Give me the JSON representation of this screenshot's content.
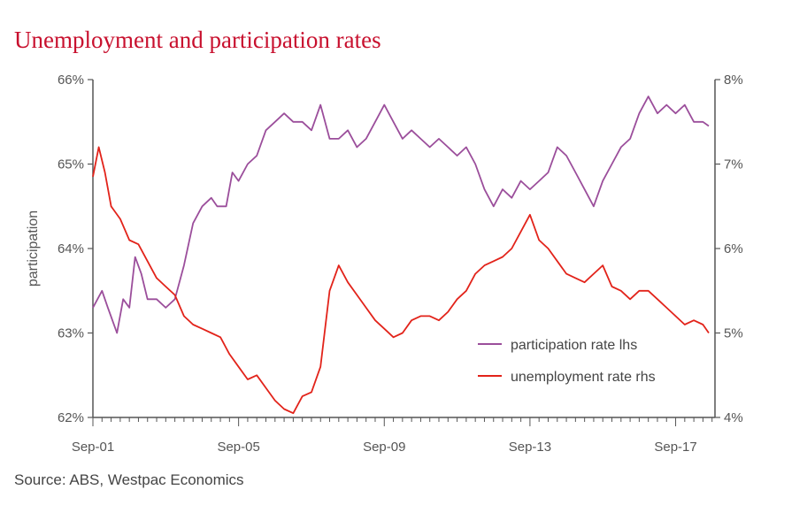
{
  "title": "Unemployment and participation rates",
  "source": "Source: ABS, Westpac Economics",
  "colors": {
    "participation": "#9b4e9b",
    "unemployment": "#e2231a",
    "axis": "#555555",
    "title": "#c8102e"
  },
  "chart_data": {
    "type": "line",
    "title": "Unemployment and participation rates",
    "ylabel_left": "participation",
    "ylim_left": [
      62,
      66
    ],
    "ylim_right": [
      4,
      8
    ],
    "yticks_left": [
      "62%",
      "63%",
      "64%",
      "65%",
      "66%"
    ],
    "yticks_right": [
      "4%",
      "5%",
      "6%",
      "7%",
      "8%"
    ],
    "xticks": [
      "Sep-01",
      "Sep-05",
      "Sep-09",
      "Sep-13",
      "Sep-17"
    ],
    "xlim": [
      2001.67,
      2018.75
    ],
    "grid": false,
    "legend_position": "bottom-right",
    "series": [
      {
        "name": "participation rate lhs",
        "axis": "left",
        "x": [
          2001.67,
          2001.92,
          2002.08,
          2002.33,
          2002.5,
          2002.67,
          2002.83,
          2003.0,
          2003.17,
          2003.42,
          2003.67,
          2003.92,
          2004.17,
          2004.42,
          2004.67,
          2004.92,
          2005.08,
          2005.33,
          2005.5,
          2005.67,
          2005.92,
          2006.17,
          2006.42,
          2006.67,
          2006.92,
          2007.17,
          2007.42,
          2007.67,
          2007.92,
          2008.17,
          2008.42,
          2008.67,
          2008.92,
          2009.17,
          2009.42,
          2009.67,
          2009.92,
          2010.17,
          2010.42,
          2010.67,
          2010.92,
          2011.17,
          2011.42,
          2011.67,
          2011.92,
          2012.17,
          2012.42,
          2012.67,
          2012.92,
          2013.17,
          2013.42,
          2013.67,
          2013.92,
          2014.17,
          2014.42,
          2014.67,
          2014.92,
          2015.17,
          2015.42,
          2015.67,
          2015.92,
          2016.17,
          2016.42,
          2016.67,
          2016.92,
          2017.17,
          2017.42,
          2017.67,
          2017.92,
          2018.17,
          2018.42,
          2018.58
        ],
        "values": [
          63.3,
          63.5,
          63.3,
          63.0,
          63.4,
          63.3,
          63.9,
          63.7,
          63.4,
          63.4,
          63.3,
          63.4,
          63.8,
          64.3,
          64.5,
          64.6,
          64.5,
          64.5,
          64.9,
          64.8,
          65.0,
          65.1,
          65.4,
          65.5,
          65.6,
          65.5,
          65.5,
          65.4,
          65.7,
          65.3,
          65.3,
          65.4,
          65.2,
          65.3,
          65.5,
          65.7,
          65.5,
          65.3,
          65.4,
          65.3,
          65.2,
          65.3,
          65.2,
          65.1,
          65.2,
          65.0,
          64.7,
          64.5,
          64.7,
          64.6,
          64.8,
          64.7,
          64.8,
          64.9,
          65.2,
          65.1,
          64.9,
          64.7,
          64.5,
          64.8,
          65.0,
          65.2,
          65.3,
          65.6,
          65.8,
          65.6,
          65.7,
          65.6,
          65.7,
          65.5,
          65.5,
          65.45
        ]
      },
      {
        "name": "unemployment rate rhs",
        "axis": "right",
        "x": [
          2001.67,
          2001.83,
          2002.0,
          2002.17,
          2002.42,
          2002.67,
          2002.92,
          2003.17,
          2003.42,
          2003.67,
          2003.92,
          2004.17,
          2004.42,
          2004.67,
          2004.92,
          2005.17,
          2005.42,
          2005.67,
          2005.92,
          2006.17,
          2006.42,
          2006.67,
          2006.92,
          2007.17,
          2007.42,
          2007.67,
          2007.92,
          2008.17,
          2008.42,
          2008.67,
          2008.92,
          2009.17,
          2009.42,
          2009.67,
          2009.92,
          2010.17,
          2010.42,
          2010.67,
          2010.92,
          2011.17,
          2011.42,
          2011.67,
          2011.92,
          2012.17,
          2012.42,
          2012.67,
          2012.92,
          2013.17,
          2013.42,
          2013.67,
          2013.92,
          2014.17,
          2014.42,
          2014.67,
          2014.92,
          2015.17,
          2015.42,
          2015.67,
          2015.92,
          2016.17,
          2016.42,
          2016.67,
          2016.92,
          2017.17,
          2017.42,
          2017.67,
          2017.92,
          2018.17,
          2018.42,
          2018.58
        ],
        "values": [
          6.85,
          7.2,
          6.9,
          6.5,
          6.35,
          6.1,
          6.05,
          5.85,
          5.65,
          5.55,
          5.45,
          5.2,
          5.1,
          5.05,
          5.0,
          4.95,
          4.75,
          4.6,
          4.45,
          4.5,
          4.35,
          4.2,
          4.1,
          4.05,
          4.25,
          4.3,
          4.6,
          5.5,
          5.8,
          5.6,
          5.45,
          5.3,
          5.15,
          5.05,
          4.95,
          5.0,
          5.15,
          5.2,
          5.2,
          5.15,
          5.25,
          5.4,
          5.5,
          5.7,
          5.8,
          5.85,
          5.9,
          6.0,
          6.2,
          6.4,
          6.1,
          6.0,
          5.85,
          5.7,
          5.65,
          5.6,
          5.7,
          5.8,
          5.55,
          5.5,
          5.4,
          5.5,
          5.5,
          5.4,
          5.3,
          5.2,
          5.1,
          5.15,
          5.1,
          5.0
        ]
      }
    ]
  }
}
